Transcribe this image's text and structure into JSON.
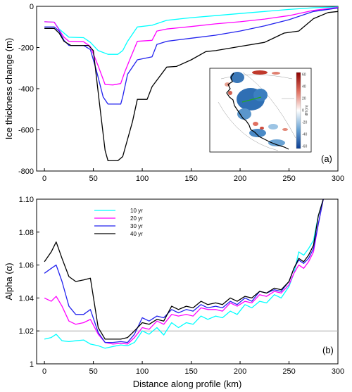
{
  "chart_data": [
    {
      "type": "line",
      "panel_label": "(a)",
      "ylabel": "Ice thickness change (m)",
      "xlim": [
        -8,
        300
      ],
      "ylim": [
        -800,
        0
      ],
      "xticks": [
        0,
        50,
        100,
        150,
        200,
        250,
        300
      ],
      "yticks": [
        0,
        -200,
        -400,
        -600,
        -800
      ],
      "series": [
        {
          "color": "#00ffff",
          "x": [
            0,
            10,
            15,
            20,
            25,
            40,
            47,
            55,
            65,
            75,
            80,
            85,
            95,
            110,
            125,
            150,
            175,
            200,
            225,
            250,
            275,
            300
          ],
          "y": [
            -75,
            -77,
            -110,
            -130,
            -150,
            -152,
            -175,
            -215,
            -233,
            -233,
            -215,
            -170,
            -100,
            -92,
            -68,
            -55,
            -45,
            -35,
            -25,
            -15,
            -7,
            -3
          ]
        },
        {
          "color": "#ff00ff",
          "x": [
            0,
            10,
            15,
            20,
            25,
            40,
            47,
            55,
            62,
            70,
            78,
            82,
            88,
            95,
            110,
            115,
            125,
            150,
            175,
            200,
            225,
            250,
            275,
            300
          ],
          "y": [
            -75,
            -77,
            -115,
            -150,
            -170,
            -172,
            -195,
            -290,
            -380,
            -382,
            -375,
            -320,
            -250,
            -170,
            -165,
            -120,
            -110,
            -98,
            -85,
            -75,
            -62,
            -45,
            -20,
            -5
          ]
        },
        {
          "color": "#2222ee",
          "x": [
            0,
            10,
            15,
            20,
            25,
            40,
            47,
            53,
            60,
            65,
            78,
            80,
            85,
            95,
            110,
            115,
            125,
            150,
            175,
            200,
            225,
            250,
            275,
            300
          ],
          "y": [
            -100,
            -100,
            -120,
            -165,
            -190,
            -190,
            -210,
            -310,
            -440,
            -475,
            -475,
            -440,
            -330,
            -260,
            -245,
            -185,
            -170,
            -155,
            -140,
            -120,
            -95,
            -65,
            -25,
            -8
          ]
        },
        {
          "color": "#000000",
          "x": [
            0,
            10,
            15,
            20,
            27,
            45,
            50,
            56,
            62,
            65,
            75,
            80,
            90,
            95,
            100,
            105,
            110,
            125,
            135,
            150,
            165,
            175,
            200,
            225,
            245,
            260,
            275,
            290,
            300
          ],
          "y": [
            -107,
            -107,
            -130,
            -170,
            -190,
            -190,
            -215,
            -460,
            -700,
            -750,
            -750,
            -730,
            -560,
            -452,
            -452,
            -452,
            -390,
            -295,
            -292,
            -260,
            -220,
            -215,
            -195,
            -175,
            -130,
            -120,
            -60,
            -30,
            -25
          ]
        }
      ]
    },
    {
      "type": "line",
      "panel_label": "(b)",
      "xlabel": "Distance along profile (km)",
      "ylabel": "Alpha (α)",
      "xlim": [
        -8,
        300
      ],
      "ylim": [
        1.0,
        1.1
      ],
      "xticks": [
        0,
        50,
        100,
        150,
        200,
        250,
        300
      ],
      "yticks": [
        1,
        1.02,
        1.04,
        1.06,
        1.08,
        1.1
      ],
      "reference_line": 1.02,
      "legend_position": "top-left",
      "series": [
        {
          "name": "10 yr",
          "color": "#00ffff",
          "x": [
            0,
            7,
            12,
            18,
            25,
            32,
            40,
            47,
            55,
            62,
            70,
            78,
            85,
            92,
            100,
            107,
            115,
            122,
            130,
            137,
            145,
            152,
            160,
            167,
            175,
            182,
            190,
            197,
            205,
            212,
            220,
            227,
            235,
            242,
            250,
            255,
            260,
            265,
            270,
            275,
            280,
            285
          ],
          "y": [
            1.015,
            1.016,
            1.018,
            1.014,
            1.0135,
            1.014,
            1.0145,
            1.012,
            1.011,
            1.0095,
            1.0105,
            1.0115,
            1.011,
            1.013,
            1.02,
            1.018,
            1.022,
            1.0175,
            1.025,
            1.022,
            1.025,
            1.024,
            1.029,
            1.027,
            1.029,
            1.028,
            1.032,
            1.03,
            1.036,
            1.034,
            1.038,
            1.037,
            1.042,
            1.04,
            1.047,
            1.055,
            1.068,
            1.066,
            1.07,
            1.075,
            1.09,
            1.1
          ]
        },
        {
          "name": "20 yr",
          "color": "#ff00ff",
          "x": [
            0,
            7,
            12,
            18,
            25,
            32,
            40,
            47,
            55,
            62,
            70,
            78,
            85,
            92,
            100,
            107,
            115,
            122,
            130,
            137,
            145,
            152,
            160,
            167,
            175,
            182,
            190,
            197,
            205,
            212,
            220,
            227,
            235,
            242,
            250,
            255,
            260,
            265,
            270,
            275,
            280,
            285
          ],
          "y": [
            1.04,
            1.038,
            1.041,
            1.035,
            1.026,
            1.024,
            1.025,
            1.027,
            1.018,
            1.013,
            1.012,
            1.0125,
            1.012,
            1.016,
            1.022,
            1.021,
            1.026,
            1.024,
            1.03,
            1.029,
            1.03,
            1.029,
            1.034,
            1.033,
            1.033,
            1.032,
            1.037,
            1.035,
            1.038,
            1.037,
            1.042,
            1.041,
            1.044,
            1.043,
            1.048,
            1.055,
            1.06,
            1.058,
            1.062,
            1.068,
            1.085,
            1.1
          ]
        },
        {
          "name": "30 yr",
          "color": "#2222ee",
          "x": [
            0,
            7,
            12,
            18,
            25,
            32,
            40,
            47,
            55,
            62,
            70,
            78,
            85,
            92,
            100,
            107,
            115,
            122,
            130,
            137,
            145,
            152,
            160,
            167,
            175,
            182,
            190,
            197,
            205,
            212,
            220,
            227,
            235,
            242,
            250,
            255,
            260,
            265,
            270,
            275,
            280,
            285
          ],
          "y": [
            1.055,
            1.058,
            1.06,
            1.05,
            1.035,
            1.03,
            1.03,
            1.033,
            1.019,
            1.013,
            1.013,
            1.0135,
            1.013,
            1.018,
            1.028,
            1.026,
            1.029,
            1.028,
            1.033,
            1.031,
            1.033,
            1.032,
            1.036,
            1.034,
            1.035,
            1.034,
            1.038,
            1.036,
            1.04,
            1.038,
            1.044,
            1.043,
            1.045,
            1.044,
            1.05,
            1.058,
            1.063,
            1.061,
            1.064,
            1.07,
            1.085,
            1.1
          ]
        },
        {
          "name": "40 yr",
          "color": "#000000",
          "x": [
            0,
            7,
            12,
            18,
            25,
            32,
            40,
            47,
            55,
            62,
            70,
            78,
            85,
            92,
            100,
            107,
            115,
            122,
            130,
            137,
            145,
            152,
            160,
            167,
            175,
            182,
            190,
            197,
            205,
            212,
            220,
            227,
            235,
            242,
            250,
            255,
            260,
            265,
            270,
            275,
            280,
            285
          ],
          "y": [
            1.062,
            1.068,
            1.074,
            1.064,
            1.053,
            1.05,
            1.051,
            1.052,
            1.022,
            1.015,
            1.015,
            1.015,
            1.016,
            1.02,
            1.025,
            1.024,
            1.027,
            1.026,
            1.035,
            1.033,
            1.035,
            1.034,
            1.038,
            1.036,
            1.037,
            1.036,
            1.04,
            1.038,
            1.041,
            1.04,
            1.044,
            1.043,
            1.046,
            1.045,
            1.05,
            1.058,
            1.064,
            1.062,
            1.066,
            1.072,
            1.09,
            1.1
          ]
        }
      ]
    }
  ],
  "inset": {
    "colorbar_label": "dH (m)",
    "colorbar_ticks": [
      "60",
      "40",
      "20",
      "0",
      "-20",
      "-40",
      "-60"
    ]
  }
}
